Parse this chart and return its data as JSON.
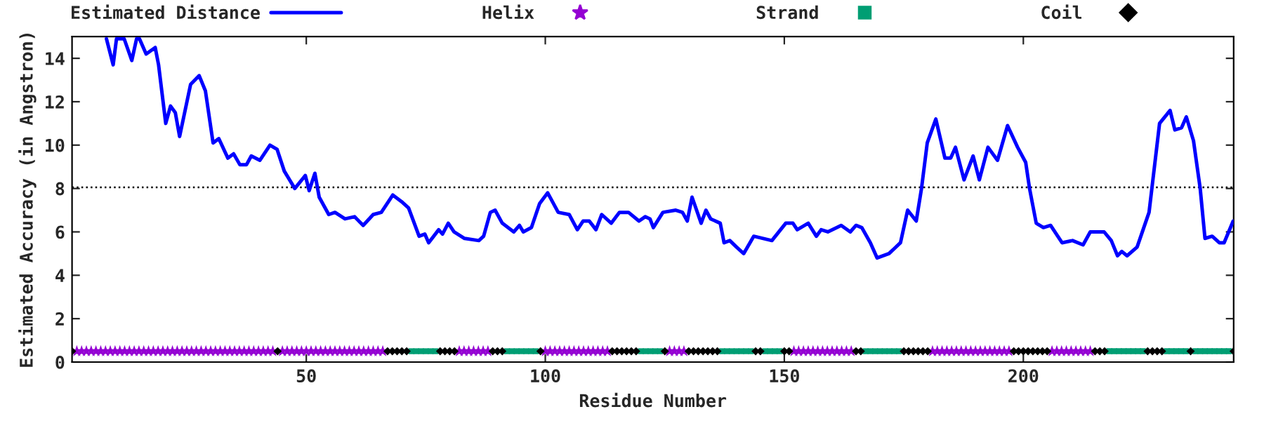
{
  "chart_data": {
    "type": "line",
    "xlabel": "Residue Number",
    "ylabel": "Estimated Accuracy (in Angstron)",
    "xlim": [
      1,
      244
    ],
    "xticks": [
      50,
      100,
      150,
      200
    ],
    "ylim": [
      0,
      15
    ],
    "yticks": [
      0,
      2,
      4,
      6,
      8,
      10,
      12,
      14
    ],
    "grid": false,
    "legend": "top",
    "ref_lines": [
      {
        "axis": "y",
        "value": 8.05,
        "color": "#000000",
        "line_style": "dotted"
      }
    ],
    "series": [
      {
        "name": "Estimated Distance",
        "color": "#0000ff",
        "marker": "none",
        "line_style": "solid",
        "x": [
          8.2,
          9.6,
          10.3,
          10.9,
          11.9,
          13.5,
          14.5,
          15.1,
          16.5,
          18.4,
          19.1,
          20.6,
          21.6,
          22.6,
          23.5,
          25.8,
          27.6,
          28.9,
          30.5,
          31.7,
          33.6,
          34.8,
          36.1,
          37.5,
          38.5,
          40.3,
          42.4,
          43.9,
          45.4,
          47.6,
          49.8,
          50.6,
          51.8,
          52.7,
          54.7,
          56,
          58.1,
          60.1,
          61.9,
          64,
          65.7,
          68.1,
          69.9,
          71.4,
          73.6,
          74.8,
          75.6,
          77.7,
          78.5,
          79.7,
          80.9,
          83.1,
          86.1,
          87.1,
          88.5,
          89.5,
          91,
          93.4,
          94.6,
          95.4,
          97.1,
          98.8,
          100.5,
          102.7,
          105,
          106.7,
          107.9,
          109.2,
          110.6,
          111.8,
          113.8,
          115.5,
          117.4,
          119.6,
          120.9,
          121.9,
          122.6,
          124.6,
          127.3,
          128.7,
          129.7,
          130.7,
          132.6,
          133.6,
          134.6,
          136.6,
          137.4,
          138.6,
          140,
          141.5,
          143.6,
          147.4,
          150.3,
          151.8,
          152.7,
          155,
          156.7,
          157.7,
          159.1,
          161.9,
          163.8,
          165,
          166.2,
          168,
          169.4,
          171.9,
          174.3,
          175.8,
          177.6,
          178.7,
          179.9,
          181.7,
          183.6,
          184.8,
          185.8,
          187.6,
          189.5,
          190.8,
          192.6,
          194.6,
          196.7,
          198.8,
          200.5,
          201.3,
          202.7,
          204.2,
          205.7,
          208.1,
          210.3,
          212.5,
          214,
          216.9,
          218.4,
          219.7,
          220.6,
          221.7,
          223.8,
          226.3,
          228.5,
          230.7,
          231.7,
          233.1,
          234.1,
          235.6,
          237,
          238,
          239.5,
          241,
          242,
          243.9
        ],
        "values": [
          14.9,
          13.7,
          14.9,
          14.9,
          14.9,
          13.9,
          14.9,
          14.9,
          14.2,
          14.5,
          13.7,
          11.0,
          11.8,
          11.5,
          10.4,
          12.8,
          13.2,
          12.5,
          10.1,
          10.3,
          9.4,
          9.6,
          9.1,
          9.1,
          9.5,
          9.3,
          10.0,
          9.8,
          8.8,
          8.0,
          8.6,
          7.9,
          8.7,
          7.6,
          6.8,
          6.9,
          6.6,
          6.7,
          6.3,
          6.8,
          6.9,
          7.7,
          7.4,
          7.1,
          5.8,
          5.9,
          5.5,
          6.1,
          5.9,
          6.4,
          6.0,
          5.7,
          5.6,
          5.8,
          6.9,
          7.0,
          6.4,
          6.0,
          6.3,
          6.0,
          6.2,
          7.3,
          7.8,
          6.9,
          6.8,
          6.1,
          6.5,
          6.5,
          6.1,
          6.8,
          6.4,
          6.9,
          6.9,
          6.5,
          6.7,
          6.6,
          6.2,
          6.9,
          7.0,
          6.9,
          6.5,
          7.6,
          6.4,
          7.0,
          6.6,
          6.4,
          5.5,
          5.6,
          5.3,
          5.0,
          5.8,
          5.6,
          6.4,
          6.4,
          6.1,
          6.4,
          5.8,
          6.1,
          6.0,
          6.3,
          6.0,
          6.3,
          6.2,
          5.5,
          4.8,
          5.0,
          5.5,
          7.0,
          6.5,
          8.0,
          10.1,
          11.2,
          9.4,
          9.4,
          9.9,
          8.4,
          9.5,
          8.4,
          9.9,
          9.3,
          10.9,
          9.9,
          9.2,
          8.0,
          6.4,
          6.2,
          6.3,
          5.5,
          5.6,
          5.4,
          6.0,
          6.0,
          5.6,
          4.9,
          5.1,
          4.9,
          5.3,
          6.9,
          11.0,
          11.6,
          10.7,
          10.8,
          11.3,
          10.2,
          8.0,
          5.7,
          5.8,
          5.5,
          5.5,
          6.5
        ]
      },
      {
        "name": "Helix",
        "type": "scatter",
        "color": "#9400d3",
        "marker": "star",
        "x": [
          2,
          3,
          4,
          5,
          6,
          7,
          8,
          9,
          10,
          11,
          12,
          13,
          14,
          15,
          16,
          17,
          18,
          19,
          20,
          21,
          22,
          23,
          24,
          25,
          26,
          27,
          28,
          29,
          30,
          31,
          32,
          33,
          34,
          35,
          36,
          37,
          38,
          39,
          40,
          41,
          42,
          43,
          45,
          46,
          47,
          48,
          49,
          50,
          51,
          52,
          53,
          54,
          55,
          56,
          57,
          58,
          59,
          60,
          61,
          62,
          63,
          64,
          65,
          66,
          82,
          83,
          84,
          85,
          86,
          87,
          88,
          100,
          101,
          102,
          103,
          104,
          105,
          106,
          107,
          108,
          109,
          110,
          111,
          112,
          113,
          126,
          127,
          128,
          129,
          152,
          153,
          154,
          155,
          156,
          157,
          158,
          159,
          160,
          161,
          162,
          163,
          164,
          181,
          182,
          183,
          184,
          185,
          186,
          187,
          188,
          189,
          190,
          191,
          192,
          193,
          194,
          195,
          196,
          197,
          206,
          207,
          208,
          209,
          210,
          211,
          212,
          213,
          214
        ],
        "values": [
          0.5,
          0.5,
          0.5,
          0.5,
          0.5,
          0.5,
          0.5,
          0.5,
          0.5,
          0.5,
          0.5,
          0.5,
          0.5,
          0.5,
          0.5,
          0.5,
          0.5,
          0.5,
          0.5,
          0.5,
          0.5,
          0.5,
          0.5,
          0.5,
          0.5,
          0.5,
          0.5,
          0.5,
          0.5,
          0.5,
          0.5,
          0.5,
          0.5,
          0.5,
          0.5,
          0.5,
          0.5,
          0.5,
          0.5,
          0.5,
          0.5,
          0.5,
          0.5,
          0.5,
          0.5,
          0.5,
          0.5,
          0.5,
          0.5,
          0.5,
          0.5,
          0.5,
          0.5,
          0.5,
          0.5,
          0.5,
          0.5,
          0.5,
          0.5,
          0.5,
          0.5,
          0.5,
          0.5,
          0.5,
          0.5,
          0.5,
          0.5,
          0.5,
          0.5,
          0.5,
          0.5,
          0.5,
          0.5,
          0.5,
          0.5,
          0.5,
          0.5,
          0.5,
          0.5,
          0.5,
          0.5,
          0.5,
          0.5,
          0.5,
          0.5,
          0.5,
          0.5,
          0.5,
          0.5,
          0.5,
          0.5,
          0.5,
          0.5,
          0.5,
          0.5,
          0.5,
          0.5,
          0.5,
          0.5,
          0.5,
          0.5,
          0.5,
          0.5,
          0.5,
          0.5,
          0.5,
          0.5,
          0.5,
          0.5,
          0.5,
          0.5,
          0.5,
          0.5,
          0.5,
          0.5,
          0.5,
          0.5,
          0.5,
          0.5,
          0.5,
          0.5,
          0.5,
          0.5,
          0.5,
          0.5,
          0.5,
          0.5,
          0.5
        ]
      },
      {
        "name": "Strand",
        "type": "scatter",
        "color": "#009e73",
        "marker": "square",
        "x": [
          72,
          73,
          74,
          75,
          76,
          77,
          92,
          93,
          94,
          95,
          96,
          97,
          98,
          120,
          121,
          122,
          123,
          124,
          137,
          138,
          139,
          140,
          141,
          142,
          143,
          146,
          147,
          148,
          149,
          167,
          168,
          169,
          170,
          171,
          172,
          173,
          174,
          218,
          219,
          220,
          221,
          222,
          223,
          224,
          225,
          230,
          231,
          232,
          233,
          234,
          236,
          237,
          238,
          239,
          240,
          241,
          242,
          243
        ],
        "values": [
          0.5,
          0.5,
          0.5,
          0.5,
          0.5,
          0.5,
          0.5,
          0.5,
          0.5,
          0.5,
          0.5,
          0.5,
          0.5,
          0.5,
          0.5,
          0.5,
          0.5,
          0.5,
          0.5,
          0.5,
          0.5,
          0.5,
          0.5,
          0.5,
          0.5,
          0.5,
          0.5,
          0.5,
          0.5,
          0.5,
          0.5,
          0.5,
          0.5,
          0.5,
          0.5,
          0.5,
          0.5,
          0.5,
          0.5,
          0.5,
          0.5,
          0.5,
          0.5,
          0.5,
          0.5,
          0.5,
          0.5,
          0.5,
          0.5,
          0.5,
          0.5,
          0.5,
          0.5,
          0.5,
          0.5,
          0.5,
          0.5,
          0.5
        ]
      },
      {
        "name": "Coil",
        "type": "scatter",
        "color": "#000000",
        "marker": "diamond",
        "x": [
          1,
          44,
          67,
          68,
          69,
          70,
          71,
          78,
          79,
          80,
          81,
          89,
          90,
          91,
          99,
          114,
          115,
          116,
          117,
          118,
          119,
          125,
          130,
          131,
          132,
          133,
          134,
          135,
          136,
          144,
          145,
          150,
          151,
          165,
          166,
          175,
          176,
          177,
          178,
          179,
          180,
          198,
          199,
          200,
          201,
          202,
          203,
          204,
          205,
          215,
          216,
          217,
          226,
          227,
          228,
          229,
          235,
          244
        ],
        "values": [
          0.5,
          0.5,
          0.5,
          0.5,
          0.5,
          0.5,
          0.5,
          0.5,
          0.5,
          0.5,
          0.5,
          0.5,
          0.5,
          0.5,
          0.5,
          0.5,
          0.5,
          0.5,
          0.5,
          0.5,
          0.5,
          0.5,
          0.5,
          0.5,
          0.5,
          0.5,
          0.5,
          0.5,
          0.5,
          0.5,
          0.5,
          0.5,
          0.5,
          0.5,
          0.5,
          0.5,
          0.5,
          0.5,
          0.5,
          0.5,
          0.5,
          0.5,
          0.5,
          0.5,
          0.5,
          0.5,
          0.5,
          0.5,
          0.5,
          0.5,
          0.5,
          0.5,
          0.5,
          0.5,
          0.5,
          0.5,
          0.5,
          0.5
        ]
      }
    ]
  }
}
